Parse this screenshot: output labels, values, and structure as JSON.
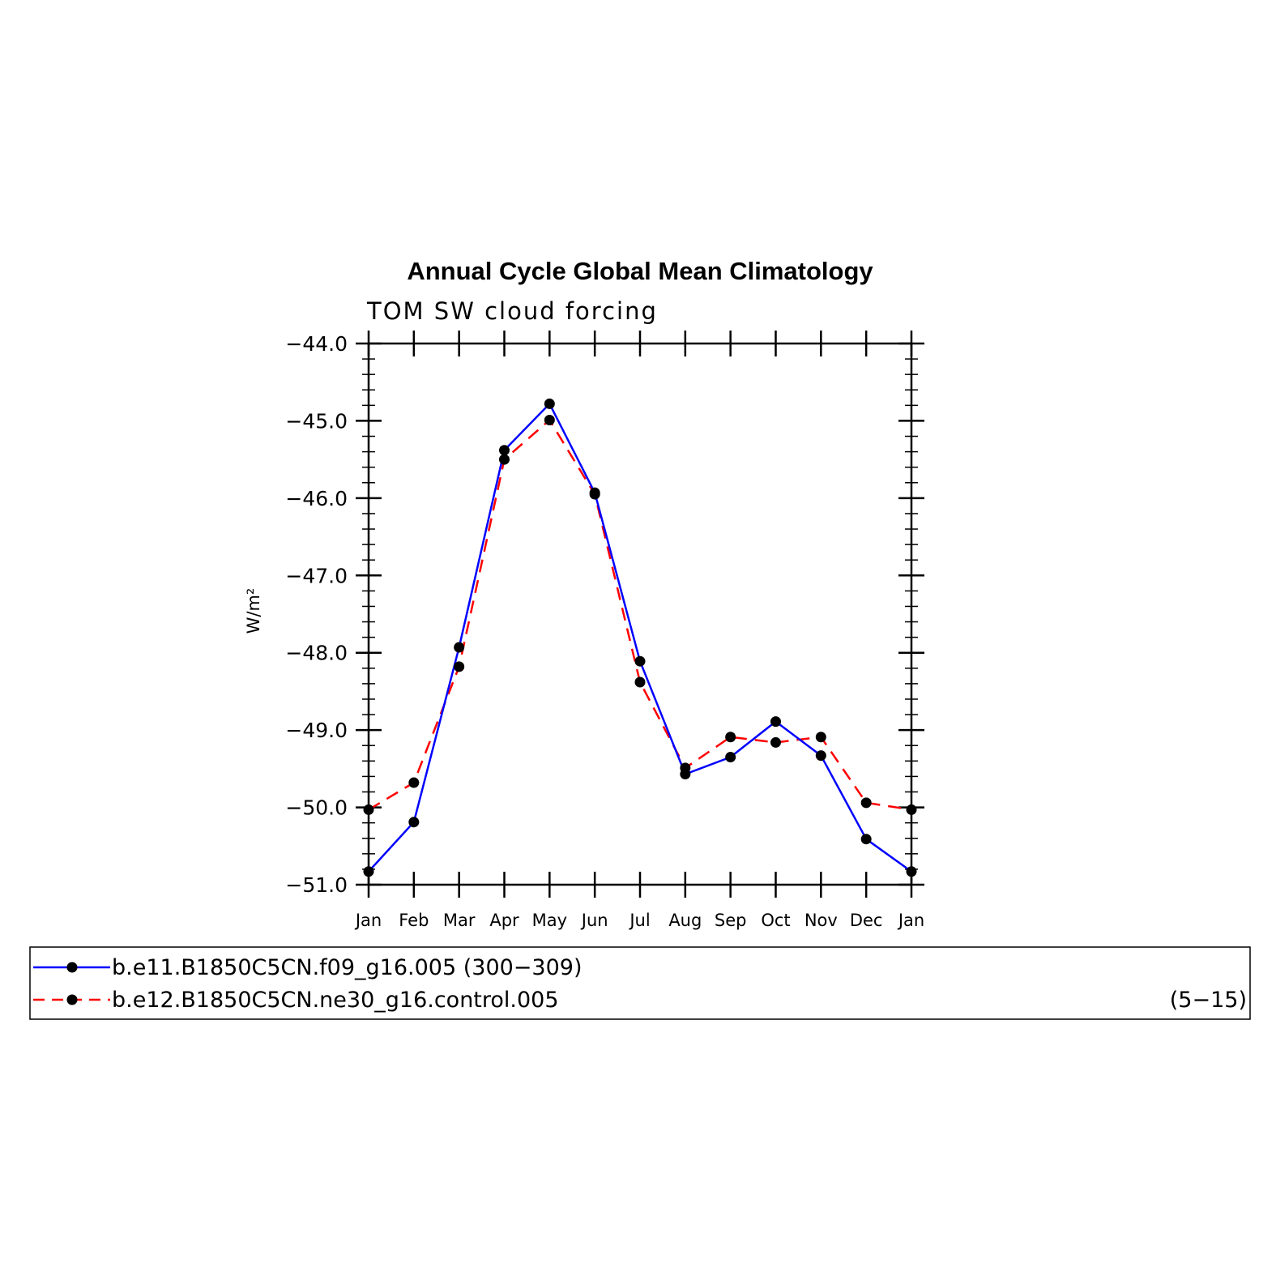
{
  "chart_data": {
    "type": "line",
    "title": "Annual Cycle Global Mean Climatology",
    "subtitle": "TOM SW cloud forcing",
    "ylabel": "W/m²",
    "ylim": [
      -51.0,
      -44.0
    ],
    "yticks": [
      "-44.0",
      "-45.0",
      "-46.0",
      "-47.0",
      "-48.0",
      "-49.0",
      "-50.0",
      "-51.0"
    ],
    "categories": [
      "Jan",
      "Feb",
      "Mar",
      "Apr",
      "May",
      "Jun",
      "Jul",
      "Aug",
      "Sep",
      "Oct",
      "Nov",
      "Dec",
      "Jan"
    ],
    "grid": false,
    "legend_position": "bottom",
    "series": [
      {
        "name": "b.e11.B1850C5CN.f09_g16.005",
        "range": "(300−309)",
        "color": "#0000ff",
        "style": "solid",
        "values": [
          -50.83,
          -50.19,
          -47.93,
          -45.38,
          -44.78,
          -45.93,
          -48.11,
          -49.57,
          -49.35,
          -48.89,
          -49.33,
          -50.41,
          -50.83
        ]
      },
      {
        "name": "b.e12.B1850C5CN.ne30_g16.control.005",
        "range": "(5−15)",
        "color": "#ff0000",
        "style": "dashed",
        "values": [
          -50.03,
          -49.68,
          -48.18,
          -45.5,
          -44.99,
          -45.95,
          -48.38,
          -49.49,
          -49.09,
          -49.16,
          -49.09,
          -49.94,
          -50.03
        ]
      }
    ]
  }
}
